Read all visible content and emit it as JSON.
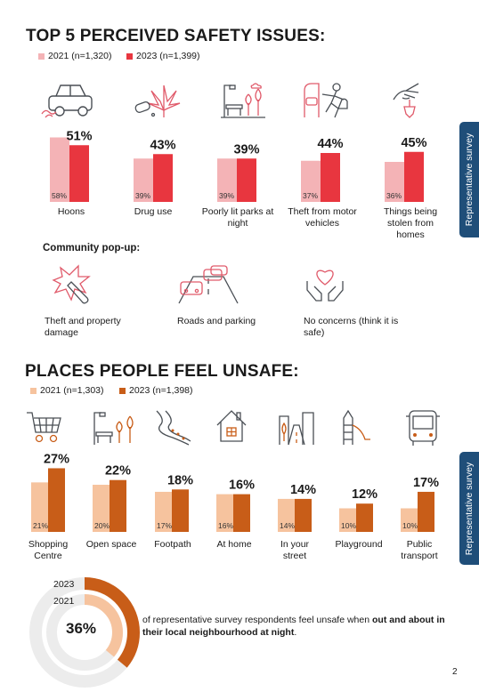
{
  "section1": {
    "title": "TOP 5 PERCEIVED SAFETY ISSUES:",
    "legend_2021": "2021 (n=1,320)",
    "legend_2023": "2023 (n=1,399)",
    "side_tab": "Representative survey",
    "community_title": "Community pop-up:",
    "community_items": [
      "Theft and property damage",
      "Roads and parking",
      "No concerns (think it is safe)"
    ]
  },
  "section2": {
    "title": "PLACES PEOPLE FEEL UNSAFE:",
    "legend_2021": "2021 (n=1,303)",
    "legend_2023": "2023 (n=1,398)",
    "side_tab": "Representative survey",
    "donut_2023": "2023",
    "donut_2021": "2021",
    "donut_value": "36%",
    "statement_pre": "of representative survey respondents feel unsafe when ",
    "statement_bold": "out and about in their local neighbourhood at night",
    "statement_post": "."
  },
  "page_number": "2",
  "colors": {
    "s1_2021": "#f4b3b6",
    "s1_2023": "#e8363f",
    "s2_2021": "#f6c39e",
    "s2_2023": "#c85d18",
    "tab": "#1f4e79",
    "icon_red": "#e05a6a",
    "icon_dark": "#4a4f55"
  },
  "chart_data": [
    {
      "type": "bar",
      "title": "TOP 5 PERCEIVED SAFETY ISSUES:",
      "categories": [
        "Hoons",
        "Drug use",
        "Poorly lit parks at night",
        "Theft from motor vehicles",
        "Things being stolen from homes"
      ],
      "series": [
        {
          "name": "2021 (n=1,320)",
          "values": [
            58,
            39,
            39,
            37,
            36
          ],
          "labels": [
            "58%",
            "39%",
            "39%",
            "37%",
            "36%"
          ]
        },
        {
          "name": "2023 (n=1,399)",
          "values": [
            51,
            43,
            39,
            44,
            45
          ],
          "labels": [
            "51%",
            "43%",
            "39%",
            "44%",
            "45%"
          ]
        }
      ],
      "icons": [
        "car-icon",
        "cannabis-leaf-icon",
        "park-lamp-icon",
        "thief-car-icon",
        "hand-grabbing-icon"
      ]
    },
    {
      "type": "bar",
      "title": "PLACES PEOPLE FEEL UNSAFE:",
      "categories": [
        "Shopping Centre",
        "Open space",
        "Footpath",
        "At home",
        "In your street",
        "Playground",
        "Public transport"
      ],
      "series": [
        {
          "name": "2021 (n=1,303)",
          "values": [
            21,
            20,
            17,
            16,
            14,
            10,
            10
          ],
          "labels": [
            "21%",
            "20%",
            "17%",
            "16%",
            "14%",
            "10%",
            "10%"
          ]
        },
        {
          "name": "2023 (n=1,398)",
          "values": [
            27,
            22,
            18,
            16,
            14,
            12,
            17
          ],
          "labels": [
            "27%",
            "22%",
            "18%",
            "16%",
            "14%",
            "12%",
            "17%"
          ]
        }
      ],
      "icons": [
        "shopping-cart-icon",
        "park-bench-icon",
        "footpath-icon",
        "house-icon",
        "street-icon",
        "playground-slide-icon",
        "bus-icon"
      ]
    },
    {
      "type": "pie",
      "title": "",
      "rings": [
        {
          "name": "2023",
          "value": 36
        },
        {
          "name": "2021",
          "value": 36
        }
      ],
      "center_label": "36%"
    }
  ]
}
